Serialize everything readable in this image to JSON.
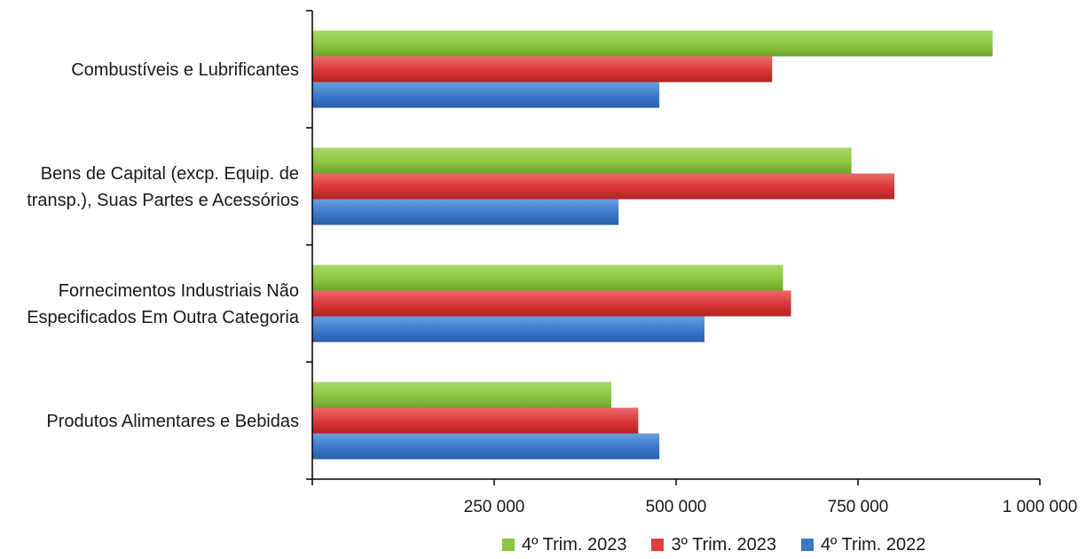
{
  "chart_data": {
    "type": "bar",
    "orientation": "horizontal",
    "title": "",
    "xlabel": "",
    "ylabel": "",
    "xlim": [
      0,
      1000000
    ],
    "ticks": [
      250000,
      500000,
      750000,
      1000000
    ],
    "tick_labels": [
      "250 000",
      "500 000",
      "750 000",
      "1 000 000"
    ],
    "categories": [
      "Combustíveis e Lubrificantes",
      "Bens de Capital (excp. Equip. de transp.), Suas Partes e Acessórios",
      "Fornecimentos Industriais Não Especificados Em Outra Categoria",
      "Produtos Alimentares e Bebidas"
    ],
    "category_label_lines": [
      [
        "Combustíveis e Lubrificantes"
      ],
      [
        "Bens de Capital (excp. Equip. de",
        "transp.), Suas Partes e Acessórios"
      ],
      [
        "Fornecimentos Industriais Não",
        "Especificados Em Outra Categoria"
      ],
      [
        "Produtos Alimentares e Bebidas"
      ]
    ],
    "series": [
      {
        "name": "4º Trim. 2023",
        "color": "#8dc63f",
        "values": [
          935000,
          741000,
          647000,
          411000
        ]
      },
      {
        "name": "3º Trim. 2023",
        "color": "#e03c3c",
        "values": [
          632000,
          800000,
          658000,
          448000
        ]
      },
      {
        "name": "4º Trim. 2022",
        "color": "#3b78c9",
        "values": [
          477000,
          421000,
          539000,
          477000
        ]
      }
    ],
    "legend_position": "bottom",
    "grid": false
  }
}
